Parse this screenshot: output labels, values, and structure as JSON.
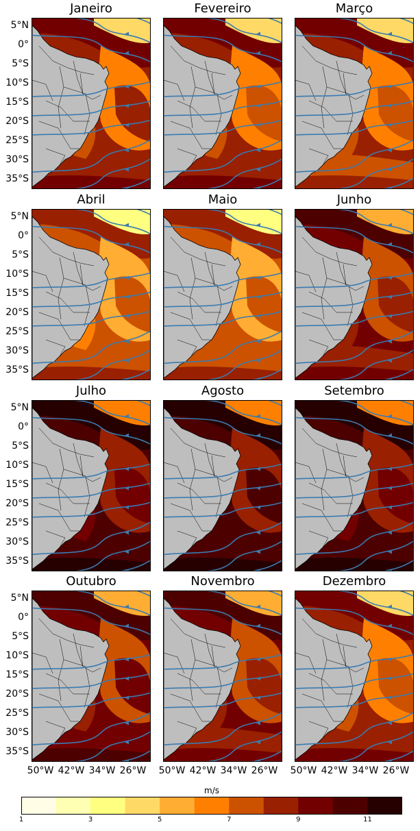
{
  "figure": {
    "months": [
      "Janeiro",
      "Fevereiro",
      "Março",
      "Abril",
      "Maio",
      "Junho",
      "Julho",
      "Agosto",
      "Setembro",
      "Outubro",
      "Novembro",
      "Dezembro"
    ],
    "lat_labels": [
      "5°N",
      "0°",
      "5°S",
      "10°S",
      "15°S",
      "20°S",
      "25°S",
      "30°S",
      "35°S"
    ],
    "lon_labels": [
      "50°W",
      "42°W",
      "34°W",
      "26°W"
    ],
    "colorbar": {
      "unit": "m/s",
      "ticks": [
        "1",
        "3",
        "5",
        "7",
        "9",
        "11"
      ],
      "levels": [
        1,
        2,
        3,
        4,
        5,
        6,
        7,
        8,
        9,
        10,
        11,
        12
      ],
      "colors": [
        "#fffde6",
        "#ffffb3",
        "#ffff80",
        "#ffd966",
        "#ffad33",
        "#ff8000",
        "#cc5200",
        "#992000",
        "#730000",
        "#4d0000",
        "#260000"
      ]
    },
    "stream_color": "#3a7bb0",
    "land_color": "#bebebe",
    "panel_intensity": [
      6.5,
      6.3,
      6.0,
      5.6,
      5.8,
      7.2,
      8.4,
      8.8,
      8.3,
      7.6,
      7.0,
      6.4
    ]
  }
}
